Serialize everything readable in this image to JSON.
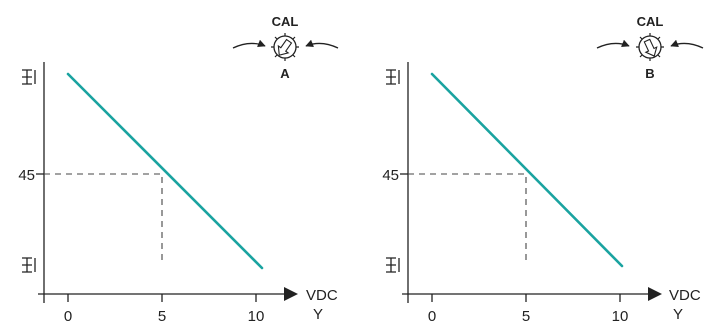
{
  "charts": [
    {
      "ytick": "45",
      "xticks": [
        "0",
        "5",
        "10"
      ],
      "xunit": "VDC",
      "xvar": "Y",
      "cal_label": "CAL",
      "dial_letter": "A"
    },
    {
      "ytick": "45",
      "xticks": [
        "0",
        "5",
        "10"
      ],
      "xunit": "VDC",
      "xvar": "Y",
      "cal_label": "CAL",
      "dial_letter": "B"
    }
  ]
}
